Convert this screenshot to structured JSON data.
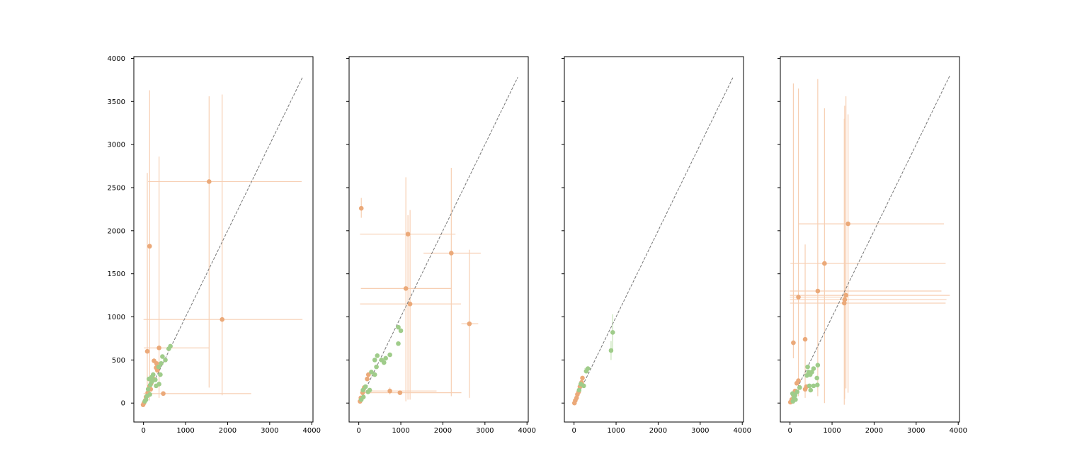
{
  "colors": {
    "orange_marker": "#eba979",
    "orange_bar": "#f7cfb3",
    "green_marker": "#9fcc8a",
    "green_bar": "#c5e3b6",
    "reference_line": "#777777"
  },
  "chart_data": [
    {
      "type": "scatter",
      "xlim": [
        -230,
        4030
      ],
      "ylim": [
        -220,
        4020
      ],
      "xticks": [
        "0",
        "1000",
        "2000",
        "3000",
        "4000"
      ],
      "yticks": [
        "0",
        "500",
        "1000",
        "1500",
        "2000",
        "2500",
        "3000",
        "3500",
        "4000"
      ],
      "reference_line": [
        [
          -20,
          -20
        ],
        [
          3780,
          3780
        ]
      ],
      "series": [
        {
          "color": "orange",
          "points": [
            {
              "x": 1560,
              "y": 2570,
              "xlo": 110,
              "xhi": 3760,
              "ylo": 180,
              "yhi": 3560
            },
            {
              "x": 145,
              "y": 1820,
              "ylo": 30,
              "yhi": 3630
            },
            {
              "x": 1870,
              "y": 970,
              "xlo": 0,
              "xhi": 3780,
              "ylo": 90,
              "yhi": 3580
            },
            {
              "x": 370,
              "y": 640,
              "xlo": 10,
              "xhi": 1560,
              "ylo": 60,
              "yhi": 2860
            },
            {
              "x": 90,
              "y": 600,
              "ylo": 200,
              "yhi": 2670
            },
            {
              "x": 470,
              "y": 110,
              "xlo": 0,
              "xhi": 2560
            },
            {
              "x": 250,
              "y": 490
            },
            {
              "x": 310,
              "y": 460
            },
            {
              "x": 300,
              "y": 410
            },
            {
              "x": 210,
              "y": 300
            },
            {
              "x": 180,
              "y": 230
            },
            {
              "x": 140,
              "y": 190
            },
            {
              "x": 100,
              "y": 120
            },
            {
              "x": 60,
              "y": 70
            },
            {
              "x": 40,
              "y": 30
            },
            {
              "x": 10,
              "y": 0
            },
            {
              "x": -10,
              "y": -20
            },
            {
              "x": 330,
              "y": 380
            },
            {
              "x": 240,
              "y": 280
            },
            {
              "x": 170,
              "y": 160
            }
          ]
        },
        {
          "color": "green",
          "points": [
            {
              "x": 640,
              "y": 660
            },
            {
              "x": 600,
              "y": 630
            },
            {
              "x": 520,
              "y": 500
            },
            {
              "x": 450,
              "y": 540
            },
            {
              "x": 420,
              "y": 460
            },
            {
              "x": 400,
              "y": 330
            },
            {
              "x": 370,
              "y": 220
            },
            {
              "x": 360,
              "y": 420
            },
            {
              "x": 280,
              "y": 270
            },
            {
              "x": 200,
              "y": 250
            },
            {
              "x": 190,
              "y": 300
            },
            {
              "x": 160,
              "y": 210
            },
            {
              "x": 150,
              "y": 100
            },
            {
              "x": 110,
              "y": 160
            },
            {
              "x": 80,
              "y": 80
            },
            {
              "x": 60,
              "y": 40
            },
            {
              "x": 30,
              "y": 20
            },
            {
              "x": 230,
              "y": 330
            },
            {
              "x": 130,
              "y": 280
            },
            {
              "x": 300,
              "y": 200
            }
          ]
        }
      ]
    },
    {
      "type": "scatter",
      "xlim": [
        -230,
        4030
      ],
      "ylim": [
        -220,
        4020
      ],
      "xticks": [
        "0",
        "1000",
        "2000",
        "3000",
        "4000"
      ],
      "yticks": [
        "",
        "",
        "",
        "",
        "",
        "",
        "",
        "",
        ""
      ],
      "reference_line": [
        [
          0,
          0
        ],
        [
          3780,
          3780
        ]
      ],
      "series": [
        {
          "color": "orange",
          "points": [
            {
              "x": 60,
              "y": 2260,
              "ylo": 2150,
              "yhi": 2380
            },
            {
              "x": 1170,
              "y": 1960,
              "xlo": 30,
              "xhi": 2300,
              "ylo": 40,
              "yhi": 2180
            },
            {
              "x": 2200,
              "y": 1740,
              "xlo": 1540,
              "xhi": 2900,
              "ylo": 80,
              "yhi": 2730
            },
            {
              "x": 1120,
              "y": 1330,
              "xlo": 50,
              "xhi": 2200,
              "ylo": 20,
              "yhi": 2620
            },
            {
              "x": 1220,
              "y": 1150,
              "xlo": 30,
              "xhi": 2430,
              "ylo": 40,
              "yhi": 2240
            },
            {
              "x": 2630,
              "y": 920,
              "xlo": 2440,
              "xhi": 2840,
              "ylo": 60,
              "yhi": 1780
            },
            {
              "x": 740,
              "y": 140,
              "xlo": 60,
              "xhi": 1850,
              "ylo": 100,
              "yhi": 180
            },
            {
              "x": 980,
              "y": 120,
              "xlo": 50,
              "xhi": 2440
            },
            {
              "x": 230,
              "y": 330
            },
            {
              "x": 200,
              "y": 280
            },
            {
              "x": 130,
              "y": 180
            },
            {
              "x": 90,
              "y": 120
            },
            {
              "x": 50,
              "y": 60
            },
            {
              "x": 30,
              "y": 20
            }
          ]
        },
        {
          "color": "green",
          "points": [
            {
              "x": 1000,
              "y": 840
            },
            {
              "x": 940,
              "y": 880
            },
            {
              "x": 940,
              "y": 690
            },
            {
              "x": 740,
              "y": 560
            },
            {
              "x": 640,
              "y": 520
            },
            {
              "x": 600,
              "y": 470
            },
            {
              "x": 540,
              "y": 500
            },
            {
              "x": 440,
              "y": 550
            },
            {
              "x": 380,
              "y": 500
            },
            {
              "x": 380,
              "y": 330
            },
            {
              "x": 300,
              "y": 360
            },
            {
              "x": 260,
              "y": 150
            },
            {
              "x": 220,
              "y": 130
            },
            {
              "x": 160,
              "y": 190
            },
            {
              "x": 110,
              "y": 70
            },
            {
              "x": 60,
              "y": 40
            },
            {
              "x": 100,
              "y": 150
            },
            {
              "x": 420,
              "y": 420
            }
          ]
        }
      ]
    },
    {
      "type": "scatter",
      "xlim": [
        -230,
        4030
      ],
      "ylim": [
        -220,
        4020
      ],
      "xticks": [
        "0",
        "1000",
        "2000",
        "3000",
        "4000"
      ],
      "yticks": [
        "",
        "",
        "",
        "",
        "",
        "",
        "",
        "",
        ""
      ],
      "reference_line": [
        [
          -20,
          -20
        ],
        [
          3780,
          3780
        ]
      ],
      "series": [
        {
          "color": "orange",
          "points": [
            {
              "x": 200,
              "y": 290
            },
            {
              "x": 180,
              "y": 240
            },
            {
              "x": 140,
              "y": 190
            },
            {
              "x": 110,
              "y": 130
            },
            {
              "x": 80,
              "y": 100
            },
            {
              "x": 60,
              "y": 60
            },
            {
              "x": 30,
              "y": 30
            },
            {
              "x": 10,
              "y": 0
            }
          ]
        },
        {
          "color": "green",
          "points": [
            {
              "x": 920,
              "y": 820,
              "ylo": 620,
              "yhi": 1030
            },
            {
              "x": 880,
              "y": 610,
              "ylo": 500,
              "yhi": 720
            },
            {
              "x": 330,
              "y": 400,
              "xlo": 250,
              "xhi": 400
            },
            {
              "x": 290,
              "y": 370
            },
            {
              "x": 230,
              "y": 200
            },
            {
              "x": 160,
              "y": 220
            },
            {
              "x": 120,
              "y": 150
            }
          ]
        }
      ]
    },
    {
      "type": "scatter",
      "xlim": [
        -230,
        4030
      ],
      "ylim": [
        -220,
        4020
      ],
      "xticks": [
        "0",
        "1000",
        "2000",
        "3000",
        "4000"
      ],
      "yticks": [
        "",
        "",
        "",
        "",
        "",
        "",
        "",
        "",
        ""
      ],
      "reference_line": [
        [
          0,
          0
        ],
        [
          3800,
          3800
        ]
      ],
      "series": [
        {
          "color": "orange",
          "points": [
            {
              "x": 1380,
              "y": 2080,
              "xlo": 210,
              "xhi": 3660,
              "ylo": 120,
              "yhi": 3350
            },
            {
              "x": 820,
              "y": 1620,
              "xlo": 10,
              "xhi": 3700,
              "ylo": 0,
              "yhi": 3420
            },
            {
              "x": 660,
              "y": 1300,
              "xlo": 0,
              "xhi": 3600,
              "ylo": 80,
              "yhi": 3760
            },
            {
              "x": 1330,
              "y": 1250,
              "xlo": 0,
              "xhi": 3800,
              "ylo": 170,
              "yhi": 3560
            },
            {
              "x": 200,
              "y": 1230,
              "xlo": 0,
              "xhi": 1290,
              "ylo": 80,
              "yhi": 3650
            },
            {
              "x": 1300,
              "y": 1200,
              "xlo": 0,
              "xhi": 3720,
              "ylo": 50,
              "yhi": 3450
            },
            {
              "x": 1290,
              "y": 1160,
              "xlo": 0,
              "xhi": 3700,
              "ylo": -20,
              "yhi": 3300
            },
            {
              "x": 80,
              "y": 700,
              "ylo": 520,
              "yhi": 3710
            },
            {
              "x": 360,
              "y": 740,
              "ylo": 60,
              "yhi": 1840
            },
            {
              "x": 390,
              "y": 190
            },
            {
              "x": 360,
              "y": 160
            },
            {
              "x": 230,
              "y": 180
            },
            {
              "x": 200,
              "y": 260
            },
            {
              "x": 160,
              "y": 230
            },
            {
              "x": 120,
              "y": 140
            },
            {
              "x": 80,
              "y": 90
            },
            {
              "x": 40,
              "y": 40
            },
            {
              "x": 10,
              "y": 10
            }
          ]
        },
        {
          "color": "green",
          "points": [
            {
              "x": 660,
              "y": 440
            },
            {
              "x": 560,
              "y": 400
            },
            {
              "x": 520,
              "y": 360
            },
            {
              "x": 480,
              "y": 330
            },
            {
              "x": 440,
              "y": 360
            },
            {
              "x": 420,
              "y": 420
            },
            {
              "x": 400,
              "y": 320
            },
            {
              "x": 640,
              "y": 290
            },
            {
              "x": 650,
              "y": 210
            },
            {
              "x": 560,
              "y": 200
            },
            {
              "x": 490,
              "y": 150
            },
            {
              "x": 460,
              "y": 200
            },
            {
              "x": 230,
              "y": 180
            },
            {
              "x": 170,
              "y": 130
            },
            {
              "x": 120,
              "y": 90
            },
            {
              "x": 90,
              "y": 60
            },
            {
              "x": 70,
              "y": 20
            },
            {
              "x": 130,
              "y": 40
            },
            {
              "x": 60,
              "y": 110
            }
          ]
        }
      ]
    }
  ]
}
